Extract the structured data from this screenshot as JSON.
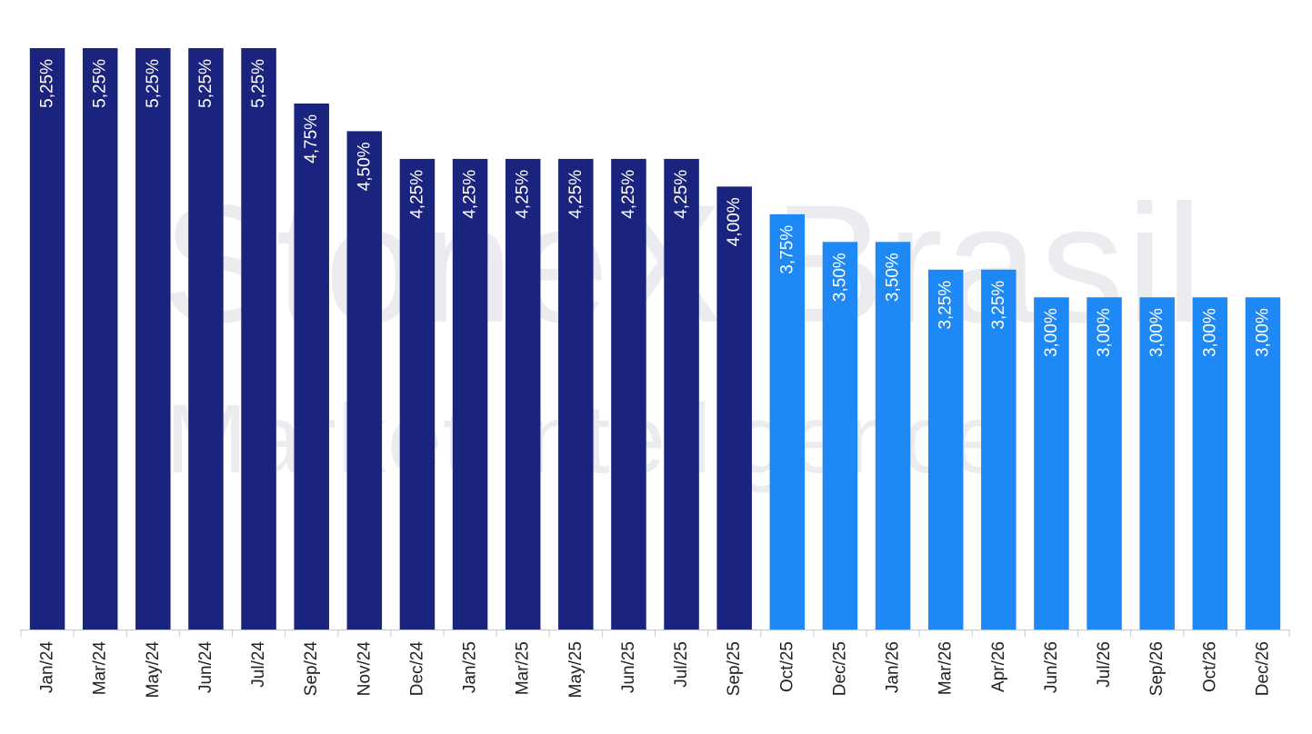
{
  "watermark": {
    "line1": "StoneX Brasil",
    "line2": "Market Intelligence"
  },
  "colors": {
    "actual": "#1a237e",
    "forecast": "#1e88f5",
    "axis": "#c8c8c8",
    "label_inside": "#ffffff",
    "tick_text": "#222222",
    "watermark": "#ececf0"
  },
  "chart_data": {
    "type": "bar",
    "title": "",
    "xlabel": "",
    "ylabel": "",
    "ylim": [
      0,
      5.25
    ],
    "grid": false,
    "categories": [
      "Jan/24",
      "Mar/24",
      "May/24",
      "Jun/24",
      "Jul/24",
      "Sep/24",
      "Nov/24",
      "Dec/24",
      "Jan/25",
      "Mar/25",
      "May/25",
      "Jun/25",
      "Jul/25",
      "Sep/25",
      "Oct/25",
      "Dec/25",
      "Jan/26",
      "Mar/26",
      "Apr/26",
      "Jun/26",
      "Jul/26",
      "Sep/26",
      "Oct/26",
      "Dec/26"
    ],
    "values": [
      5.25,
      5.25,
      5.25,
      5.25,
      5.25,
      4.75,
      4.5,
      4.25,
      4.25,
      4.25,
      4.25,
      4.25,
      4.25,
      4.0,
      3.75,
      3.5,
      3.5,
      3.25,
      3.25,
      3.0,
      3.0,
      3.0,
      3.0,
      3.0
    ],
    "labels": [
      "5,25%",
      "5,25%",
      "5,25%",
      "5,25%",
      "5,25%",
      "4,75%",
      "4,50%",
      "4,25%",
      "4,25%",
      "4,25%",
      "4,25%",
      "4,25%",
      "4,25%",
      "4,00%",
      "3,75%",
      "3,50%",
      "3,50%",
      "3,25%",
      "3,25%",
      "3,00%",
      "3,00%",
      "3,00%",
      "3,00%",
      "3,00%"
    ],
    "segments": [
      "actual",
      "actual",
      "actual",
      "actual",
      "actual",
      "actual",
      "actual",
      "actual",
      "actual",
      "actual",
      "actual",
      "actual",
      "actual",
      "actual",
      "forecast",
      "forecast",
      "forecast",
      "forecast",
      "forecast",
      "forecast",
      "forecast",
      "forecast",
      "forecast",
      "forecast"
    ]
  }
}
